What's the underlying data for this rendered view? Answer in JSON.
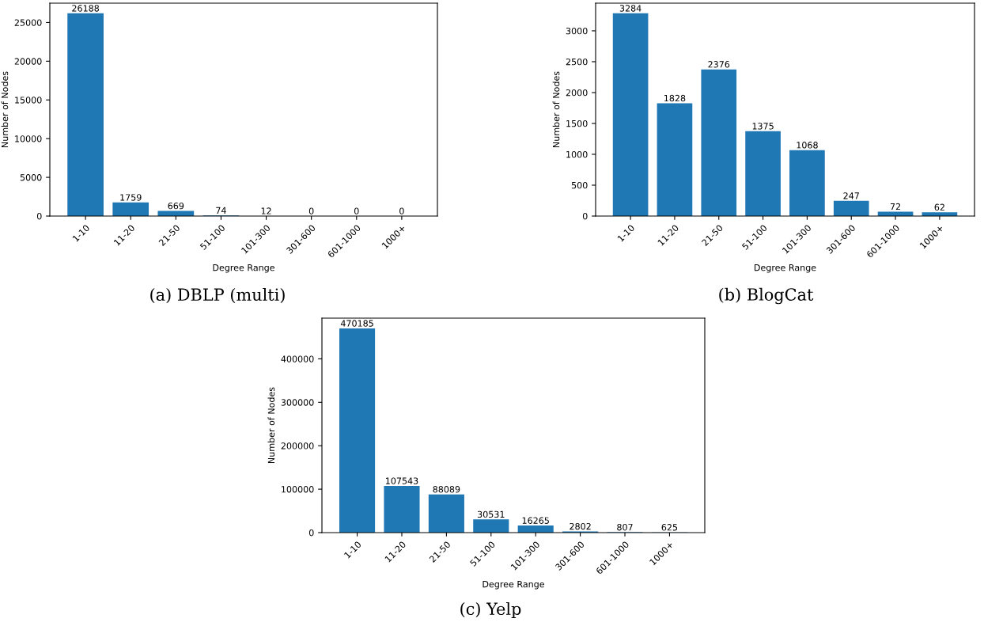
{
  "chart_data": [
    {
      "type": "bar",
      "xlabel": "Degree Range",
      "ylabel": "Number of Nodes",
      "annotations": [
        "(a) DBLP (multi)"
      ],
      "categories": [
        "1-10",
        "11-20",
        "21-50",
        "51-100",
        "101-300",
        "301-600",
        "601-1000",
        "1000+"
      ],
      "values": [
        26188,
        1759,
        669,
        74,
        12,
        0,
        0,
        0
      ],
      "color": "#1f77b4",
      "ylim": [
        0,
        27497
      ],
      "yticks": [
        0,
        5000,
        10000,
        15000,
        20000,
        25000
      ],
      "data_labels": true
    },
    {
      "type": "bar",
      "xlabel": "Degree Range",
      "ylabel": "Number of Nodes",
      "annotations": [
        "(b) BlogCat"
      ],
      "categories": [
        "1-10",
        "11-20",
        "21-50",
        "51-100",
        "101-300",
        "301-600",
        "601-1000",
        "1000+"
      ],
      "values": [
        3284,
        1828,
        2376,
        1375,
        1068,
        247,
        72,
        62
      ],
      "color": "#1f77b4",
      "ylim": [
        0,
        3448
      ],
      "yticks": [
        0,
        500,
        1000,
        1500,
        2000,
        2500,
        3000
      ],
      "data_labels": true
    },
    {
      "type": "bar",
      "xlabel": "Degree Range",
      "ylabel": "Number of Nodes",
      "annotations": [
        "(c) Yelp"
      ],
      "categories": [
        "1-10",
        "11-20",
        "21-50",
        "51-100",
        "101-300",
        "301-600",
        "601-1000",
        "1000+"
      ],
      "values": [
        470185,
        107543,
        88089,
        30531,
        16265,
        2802,
        807,
        625
      ],
      "color": "#1f77b4",
      "ylim": [
        0,
        493694
      ],
      "yticks": [
        0,
        100000,
        200000,
        300000,
        400000
      ],
      "data_labels": true
    }
  ]
}
